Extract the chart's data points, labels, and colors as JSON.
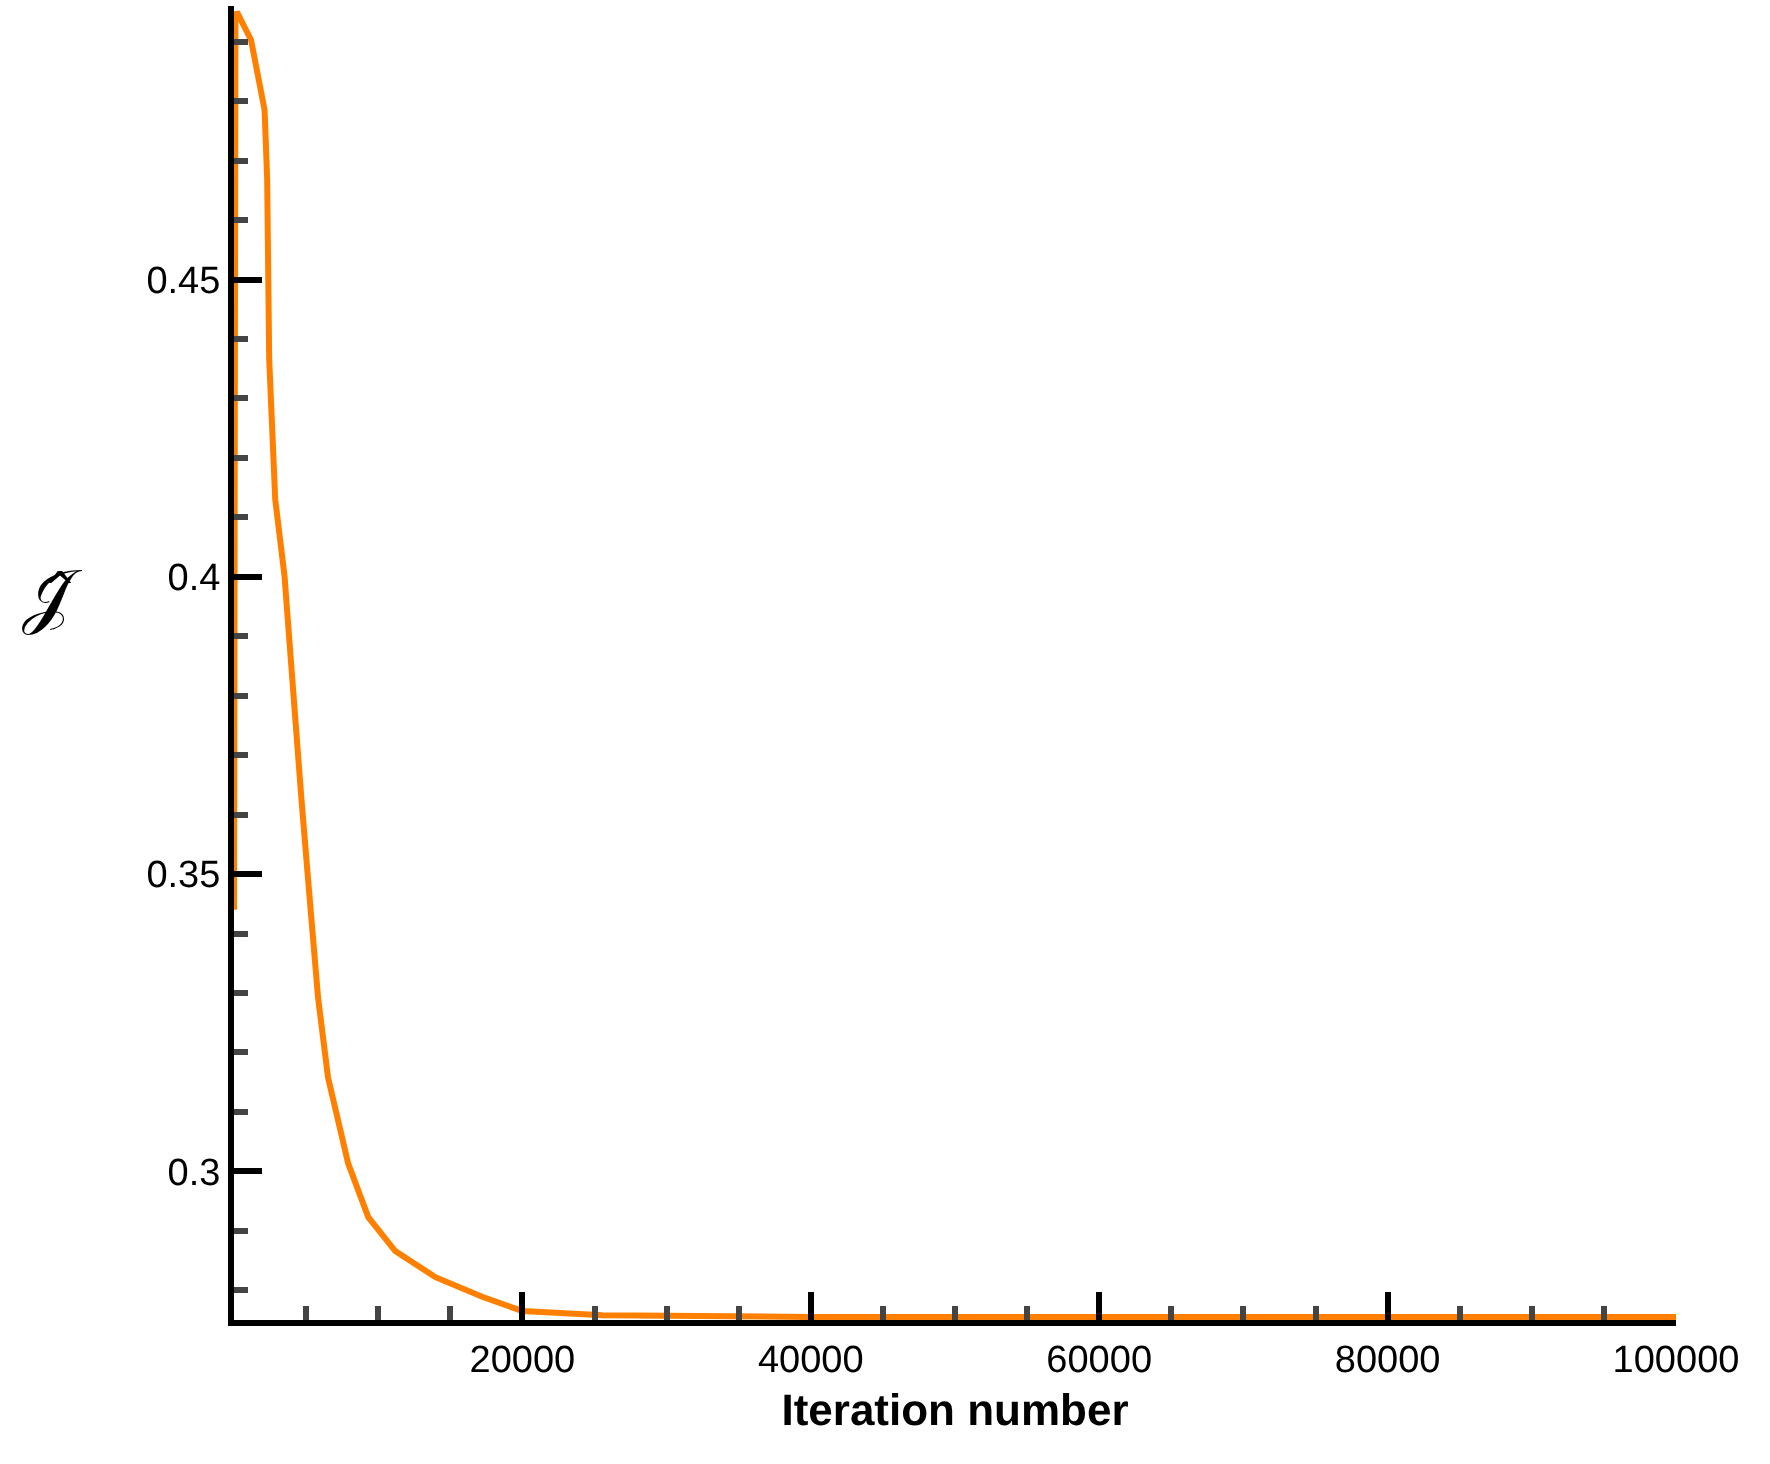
{
  "chart_data": {
    "type": "line",
    "xlabel": "Iteration number",
    "ylabel": "𝒥̂",
    "x": [
      0,
      100,
      200,
      1180,
      2120,
      2300,
      2440,
      2860,
      3510,
      3620,
      4670,
      5130,
      5830,
      6520,
      7920,
      9310,
      11180,
      13970,
      17210,
      20000,
      25570,
      40000,
      60000,
      80000,
      100000
    ],
    "series": [
      {
        "color": "#ff8000",
        "values": [
          0.344,
          0.494,
          0.495,
          0.4903,
          0.4785,
          0.467,
          0.4366,
          0.413,
          0.4,
          0.3963,
          0.3628,
          0.3493,
          0.3292,
          0.3158,
          0.3013,
          0.2923,
          0.2866,
          0.2822,
          0.2789,
          0.2765,
          0.2758,
          0.2755,
          0.2755,
          0.2755,
          0.2755
        ]
      }
    ],
    "xlim": [
      0,
      100000
    ],
    "ylim": [
      0.275,
      0.496
    ],
    "xticks": [
      20000,
      40000,
      60000,
      80000,
      100000
    ],
    "yticks": [
      0.3,
      0.35,
      {
        "value": 0.4,
        "label": "0.4"
      },
      0.45
    ],
    "marker": "none",
    "line_style": "solid"
  }
}
